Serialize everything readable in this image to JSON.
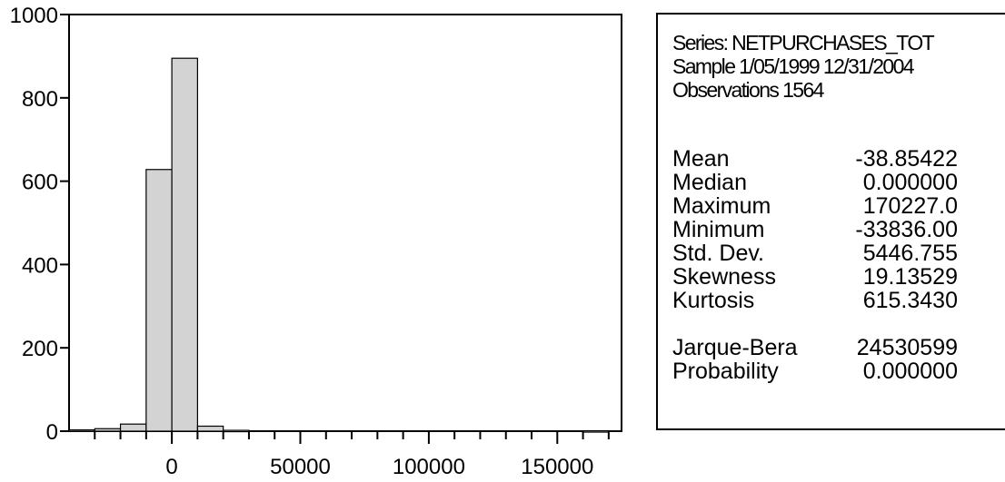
{
  "chart_data": {
    "type": "bar",
    "bins": [
      {
        "x": -35000,
        "value": 3
      },
      {
        "x": -25000,
        "value": 6
      },
      {
        "x": -15000,
        "value": 17
      },
      {
        "x": -5000,
        "value": 628
      },
      {
        "x": 5000,
        "value": 895
      },
      {
        "x": 15000,
        "value": 12
      },
      {
        "x": 25000,
        "value": 2
      },
      {
        "x": 35000,
        "value": 0
      },
      {
        "x": 45000,
        "value": 0
      },
      {
        "x": 55000,
        "value": 0
      },
      {
        "x": 65000,
        "value": 0
      },
      {
        "x": 75000,
        "value": 0
      },
      {
        "x": 85000,
        "value": 0
      },
      {
        "x": 95000,
        "value": 0
      },
      {
        "x": 105000,
        "value": 0
      },
      {
        "x": 115000,
        "value": 0
      },
      {
        "x": 125000,
        "value": 0
      },
      {
        "x": 135000,
        "value": 0
      },
      {
        "x": 145000,
        "value": 0
      },
      {
        "x": 155000,
        "value": 0
      },
      {
        "x": 165000,
        "value": 1
      }
    ],
    "bin_width": 10000,
    "xlim": [
      -40000,
      175000
    ],
    "ylim": [
      0,
      1000
    ],
    "x_ticks": [
      "0",
      "50000",
      "100000",
      "150000"
    ],
    "x_tick_values": [
      0,
      50000,
      100000,
      150000
    ],
    "y_ticks": [
      "0",
      "200",
      "400",
      "600",
      "800",
      "1000"
    ],
    "y_tick_values": [
      0,
      200,
      400,
      600,
      800,
      1000
    ],
    "bar_fill": "#d3d3d3",
    "bar_stroke": "#000000",
    "grid": false
  },
  "stats": {
    "series_line": "Series: NETPURCHASES_TOT",
    "sample_line": "Sample 1/05/1999 12/31/2004",
    "observations_line": "Observations 1564",
    "rows": [
      {
        "label": "Mean",
        "value": "-38.85422"
      },
      {
        "label": "Median",
        "value": "0.000000"
      },
      {
        "label": "Maximum",
        "value": "170227.0"
      },
      {
        "label": "Minimum",
        "value": "-33836.00"
      },
      {
        "label": "Std. Dev.",
        "value": "5446.755"
      },
      {
        "label": "Skewness",
        "value": "19.13529"
      },
      {
        "label": "Kurtosis",
        "value": "615.3430"
      }
    ],
    "jarque_bera": {
      "label": "Jarque-Bera",
      "value": "24530599"
    },
    "probability": {
      "label": "Probability",
      "value": "0.000000"
    }
  }
}
